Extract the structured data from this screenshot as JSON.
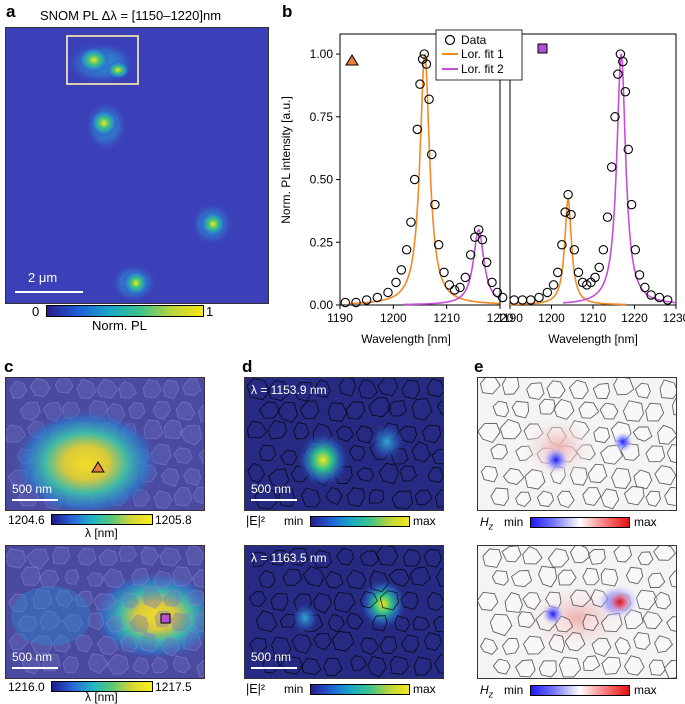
{
  "panel_labels": {
    "a": "a",
    "b": "b",
    "c": "c",
    "d": "d",
    "e": "e"
  },
  "panel_a": {
    "title": "SNOM PL Δλ = [1150–1220]nm",
    "scale_bar": "2 μm",
    "colorbar": {
      "min": "0",
      "max": "1",
      "label": "Norm. PL"
    }
  },
  "chart_data": [
    {
      "type": "scatter",
      "panel": "b-left",
      "xlabel": "Wavelength [nm]",
      "ylabel": "Norm. PL intensity [a.u.]",
      "xlim": [
        1190,
        1220
      ],
      "ylim": [
        0,
        1.08
      ],
      "xticks": [
        "1190",
        "1200",
        "1210",
        "1220"
      ],
      "yticks": [
        "0.00",
        "0.25",
        "0.50",
        "0.75",
        "1.00"
      ],
      "legend": [
        "Data",
        "Lor. fit 1",
        "Lor. fit 2"
      ],
      "legend_placement": "top-right",
      "marker": "triangle",
      "series": [
        {
          "name": "Data",
          "points": [
            [
              1191,
              0.01
            ],
            [
              1193,
              0.01
            ],
            [
              1195,
              0.02
            ],
            [
              1197,
              0.03
            ],
            [
              1199,
              0.05
            ],
            [
              1200.5,
              0.09
            ],
            [
              1201.5,
              0.14
            ],
            [
              1202.5,
              0.22
            ],
            [
              1203.3,
              0.33
            ],
            [
              1204,
              0.5
            ],
            [
              1204.5,
              0.7
            ],
            [
              1205,
              0.88
            ],
            [
              1205.5,
              0.98
            ],
            [
              1205.8,
              1.0
            ],
            [
              1206.2,
              0.96
            ],
            [
              1206.7,
              0.82
            ],
            [
              1207.2,
              0.6
            ],
            [
              1207.8,
              0.4
            ],
            [
              1208.5,
              0.24
            ],
            [
              1209.5,
              0.13
            ],
            [
              1210.5,
              0.08
            ],
            [
              1211.5,
              0.06
            ],
            [
              1212.5,
              0.07
            ],
            [
              1213.5,
              0.11
            ],
            [
              1214.5,
              0.2
            ],
            [
              1215.3,
              0.27
            ],
            [
              1216,
              0.3
            ],
            [
              1216.7,
              0.26
            ],
            [
              1217.5,
              0.17
            ],
            [
              1218.5,
              0.09
            ],
            [
              1219.5,
              0.05
            ],
            [
              1220.5,
              0.03
            ]
          ]
        },
        {
          "name": "Lor. fit 1",
          "center": 1205.9,
          "fwhm": 2.2,
          "amp": 1.0
        },
        {
          "name": "Lor. fit 2",
          "center": 1216.0,
          "fwhm": 2.4,
          "amp": 0.3
        }
      ]
    },
    {
      "type": "scatter",
      "panel": "b-right",
      "xlabel": "Wavelength [nm]",
      "xlim": [
        1190,
        1230
      ],
      "ylim": [
        0,
        1.08
      ],
      "xticks": [
        "1190",
        "1200",
        "1210",
        "1220",
        "1230"
      ],
      "marker": "square",
      "series": [
        {
          "name": "Data",
          "points": [
            [
              1191,
              0.02
            ],
            [
              1193,
              0.02
            ],
            [
              1195,
              0.02
            ],
            [
              1197,
              0.03
            ],
            [
              1199,
              0.05
            ],
            [
              1200.5,
              0.08
            ],
            [
              1201.5,
              0.13
            ],
            [
              1202.5,
              0.24
            ],
            [
              1203.3,
              0.37
            ],
            [
              1204,
              0.44
            ],
            [
              1204.7,
              0.36
            ],
            [
              1205.5,
              0.22
            ],
            [
              1206.5,
              0.13
            ],
            [
              1207.5,
              0.09
            ],
            [
              1208.5,
              0.08
            ],
            [
              1209.5,
              0.09
            ],
            [
              1210.5,
              0.11
            ],
            [
              1211.5,
              0.15
            ],
            [
              1212.5,
              0.22
            ],
            [
              1213.5,
              0.35
            ],
            [
              1214.5,
              0.55
            ],
            [
              1215.3,
              0.75
            ],
            [
              1216,
              0.92
            ],
            [
              1216.6,
              1.0
            ],
            [
              1217.2,
              0.97
            ],
            [
              1217.8,
              0.85
            ],
            [
              1218.5,
              0.62
            ],
            [
              1219.3,
              0.4
            ],
            [
              1220.2,
              0.22
            ],
            [
              1221.2,
              0.12
            ],
            [
              1222.5,
              0.07
            ],
            [
              1224,
              0.04
            ],
            [
              1226,
              0.03
            ],
            [
              1228,
              0.02
            ]
          ]
        },
        {
          "name": "Lor. fit 1",
          "center": 1204.0,
          "fwhm": 2.0,
          "amp": 0.42
        },
        {
          "name": "Lor. fit 2",
          "center": 1216.8,
          "fwhm": 2.6,
          "amp": 1.0
        }
      ]
    }
  ],
  "panel_c": {
    "top": {
      "scale_bar": "500 nm",
      "cbar_min": "1204.6",
      "cbar_max": "1205.8",
      "cbar_label": "λ [nm]"
    },
    "bottom": {
      "scale_bar": "500 nm",
      "cbar_min": "1216.0",
      "cbar_max": "1217.5",
      "cbar_label": "λ [nm]"
    }
  },
  "panel_d": {
    "top": {
      "lambda": "λ = 1153.9 nm",
      "scale_bar": "500 nm",
      "cbar_label": "|E|²",
      "min": "min",
      "max": "max"
    },
    "bottom": {
      "lambda": "λ = 1163.5 nm",
      "scale_bar": "500 nm",
      "cbar_label": "|E|²",
      "min": "min",
      "max": "max"
    }
  },
  "panel_e": {
    "top": {
      "cbar_label": "H_z",
      "min": "min",
      "max": "max"
    },
    "bottom": {
      "cbar_label": "H_z",
      "min": "min",
      "max": "max"
    }
  },
  "colors": {
    "fit1": "#f08a24",
    "fit2": "#c44fd6",
    "triangle": "#e8803a",
    "square": "#b44fd6",
    "map_bg": "#3b3fb8"
  }
}
